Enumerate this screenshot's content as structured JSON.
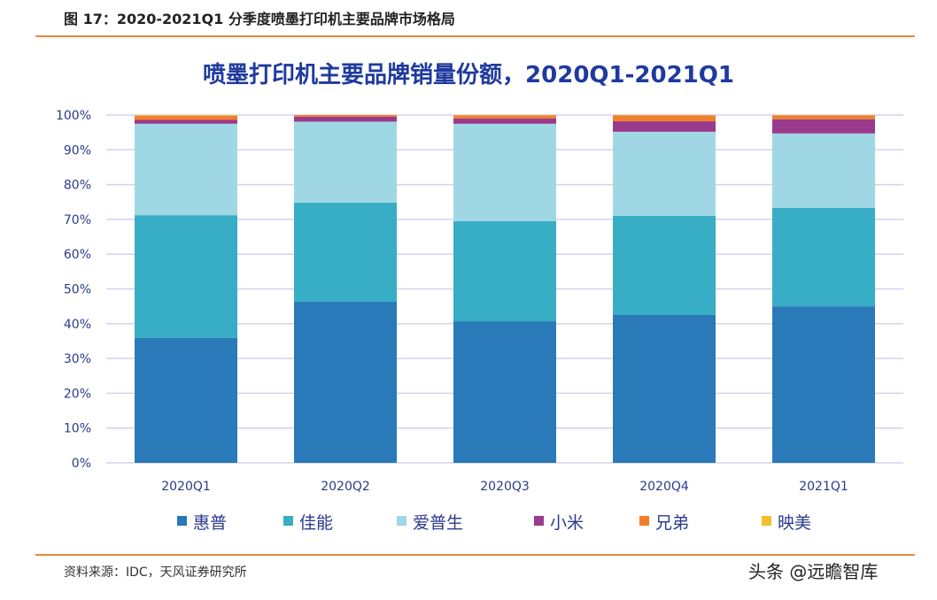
{
  "figure_title": "图 17：2020-2021Q1 分季度喷墨打印机主要品牌市场格局",
  "source": "资料来源：IDC，天风证券研究所",
  "watermark": "头条 @远瞻智库",
  "chart_data": {
    "type": "bar",
    "stacked": true,
    "title": "喷墨打印机主要品牌销量份额，2020Q1-2021Q1",
    "categories": [
      "2020Q1",
      "2020Q2",
      "2020Q3",
      "2020Q4",
      "2021Q1"
    ],
    "ylim": [
      0,
      100
    ],
    "yticks": [
      "0%",
      "10%",
      "20%",
      "30%",
      "40%",
      "50%",
      "60%",
      "70%",
      "80%",
      "90%",
      "100%"
    ],
    "grid": true,
    "legend_position": "bottom",
    "series": [
      {
        "name": "惠普",
        "color": "#2a79b9",
        "values": [
          35.9,
          46.3,
          40.7,
          42.5,
          45.0
        ]
      },
      {
        "name": "佳能",
        "color": "#38adc6",
        "values": [
          35.3,
          28.5,
          28.8,
          28.5,
          28.3
        ]
      },
      {
        "name": "爱普生",
        "color": "#9fd8e4",
        "values": [
          26.3,
          23.3,
          28.0,
          24.2,
          21.4
        ]
      },
      {
        "name": "小米",
        "color": "#9a3a8c",
        "values": [
          1.1,
          1.4,
          1.5,
          3.0,
          4.1
        ]
      },
      {
        "name": "兄弟",
        "color": "#f07f2c",
        "values": [
          1.2,
          0.5,
          0.9,
          1.7,
          1.1
        ]
      },
      {
        "name": "映美",
        "color": "#f3c02c",
        "values": [
          0.2,
          0,
          0.1,
          0.1,
          0.1
        ]
      }
    ]
  }
}
